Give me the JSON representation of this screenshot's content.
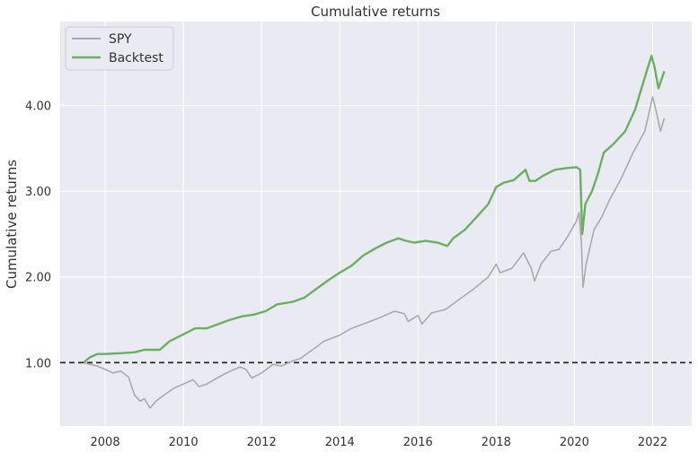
{
  "chart_data": {
    "type": "line",
    "title": "Cumulative returns",
    "xlabel": "",
    "ylabel": "Cumulative returns",
    "xlim": [
      2006.85,
      2023.0
    ],
    "ylim": [
      0.26,
      4.98
    ],
    "xticks": [
      2008,
      2010,
      2012,
      2014,
      2016,
      2018,
      2020,
      2022
    ],
    "xtick_labels": [
      "2008",
      "2010",
      "2012",
      "2014",
      "2016",
      "2018",
      "2020",
      "2022"
    ],
    "yticks": [
      1.0,
      2.0,
      3.0,
      4.0
    ],
    "ytick_labels": [
      "1.00",
      "2.00",
      "3.00",
      "4.00"
    ],
    "grid": true,
    "legend": "top-left",
    "reference_line": {
      "y": 1.0,
      "style": "dashed",
      "color": "#222222"
    },
    "series": [
      {
        "name": "SPY",
        "color": "#aaaaaa",
        "points": [
          [
            2007.45,
            1.0
          ],
          [
            2007.6,
            0.98
          ],
          [
            2007.8,
            0.96
          ],
          [
            2008.0,
            0.92
          ],
          [
            2008.2,
            0.88
          ],
          [
            2008.4,
            0.9
          ],
          [
            2008.6,
            0.83
          ],
          [
            2008.75,
            0.62
          ],
          [
            2008.9,
            0.55
          ],
          [
            2009.0,
            0.58
          ],
          [
            2009.15,
            0.47
          ],
          [
            2009.3,
            0.55
          ],
          [
            2009.5,
            0.62
          ],
          [
            2009.75,
            0.7
          ],
          [
            2010.0,
            0.75
          ],
          [
            2010.25,
            0.8
          ],
          [
            2010.4,
            0.72
          ],
          [
            2010.6,
            0.75
          ],
          [
            2010.9,
            0.83
          ],
          [
            2011.2,
            0.9
          ],
          [
            2011.45,
            0.95
          ],
          [
            2011.6,
            0.92
          ],
          [
            2011.75,
            0.82
          ],
          [
            2012.0,
            0.88
          ],
          [
            2012.3,
            0.98
          ],
          [
            2012.5,
            0.96
          ],
          [
            2012.8,
            1.02
          ],
          [
            2013.0,
            1.05
          ],
          [
            2013.3,
            1.15
          ],
          [
            2013.6,
            1.25
          ],
          [
            2014.0,
            1.32
          ],
          [
            2014.3,
            1.4
          ],
          [
            2014.6,
            1.45
          ],
          [
            2015.0,
            1.52
          ],
          [
            2015.4,
            1.6
          ],
          [
            2015.65,
            1.57
          ],
          [
            2015.75,
            1.48
          ],
          [
            2016.0,
            1.55
          ],
          [
            2016.1,
            1.45
          ],
          [
            2016.35,
            1.58
          ],
          [
            2016.7,
            1.62
          ],
          [
            2017.0,
            1.72
          ],
          [
            2017.4,
            1.85
          ],
          [
            2017.8,
            2.0
          ],
          [
            2018.0,
            2.15
          ],
          [
            2018.1,
            2.05
          ],
          [
            2018.4,
            2.1
          ],
          [
            2018.7,
            2.28
          ],
          [
            2018.9,
            2.1
          ],
          [
            2018.98,
            1.95
          ],
          [
            2019.15,
            2.15
          ],
          [
            2019.4,
            2.3
          ],
          [
            2019.6,
            2.32
          ],
          [
            2019.8,
            2.45
          ],
          [
            2020.05,
            2.65
          ],
          [
            2020.12,
            2.75
          ],
          [
            2020.18,
            2.4
          ],
          [
            2020.22,
            1.88
          ],
          [
            2020.3,
            2.15
          ],
          [
            2020.5,
            2.55
          ],
          [
            2020.7,
            2.7
          ],
          [
            2020.9,
            2.9
          ],
          [
            2021.2,
            3.15
          ],
          [
            2021.5,
            3.45
          ],
          [
            2021.8,
            3.7
          ],
          [
            2022.0,
            4.1
          ],
          [
            2022.1,
            3.92
          ],
          [
            2022.2,
            3.7
          ],
          [
            2022.3,
            3.85
          ]
        ]
      },
      {
        "name": "Backtest",
        "color": "#6aaf62",
        "points": [
          [
            2007.45,
            1.0
          ],
          [
            2007.6,
            1.06
          ],
          [
            2007.8,
            1.1
          ],
          [
            2008.0,
            1.1
          ],
          [
            2008.4,
            1.11
          ],
          [
            2008.75,
            1.12
          ],
          [
            2009.0,
            1.15
          ],
          [
            2009.4,
            1.15
          ],
          [
            2009.65,
            1.25
          ],
          [
            2010.0,
            1.33
          ],
          [
            2010.3,
            1.4
          ],
          [
            2010.6,
            1.4
          ],
          [
            2010.9,
            1.45
          ],
          [
            2011.2,
            1.5
          ],
          [
            2011.5,
            1.54
          ],
          [
            2011.8,
            1.56
          ],
          [
            2012.1,
            1.6
          ],
          [
            2012.4,
            1.68
          ],
          [
            2012.8,
            1.71
          ],
          [
            2013.1,
            1.76
          ],
          [
            2013.4,
            1.86
          ],
          [
            2013.7,
            1.96
          ],
          [
            2014.0,
            2.05
          ],
          [
            2014.3,
            2.13
          ],
          [
            2014.6,
            2.25
          ],
          [
            2014.9,
            2.33
          ],
          [
            2015.2,
            2.4
          ],
          [
            2015.5,
            2.45
          ],
          [
            2015.7,
            2.42
          ],
          [
            2015.9,
            2.4
          ],
          [
            2016.2,
            2.42
          ],
          [
            2016.5,
            2.4
          ],
          [
            2016.75,
            2.36
          ],
          [
            2016.9,
            2.45
          ],
          [
            2017.2,
            2.55
          ],
          [
            2017.5,
            2.7
          ],
          [
            2017.8,
            2.85
          ],
          [
            2018.0,
            3.05
          ],
          [
            2018.2,
            3.1
          ],
          [
            2018.45,
            3.13
          ],
          [
            2018.75,
            3.25
          ],
          [
            2018.85,
            3.12
          ],
          [
            2019.0,
            3.12
          ],
          [
            2019.2,
            3.18
          ],
          [
            2019.5,
            3.25
          ],
          [
            2019.8,
            3.27
          ],
          [
            2020.05,
            3.28
          ],
          [
            2020.15,
            3.25
          ],
          [
            2020.2,
            2.5
          ],
          [
            2020.28,
            2.85
          ],
          [
            2020.45,
            3.0
          ],
          [
            2020.6,
            3.2
          ],
          [
            2020.75,
            3.45
          ],
          [
            2021.0,
            3.55
          ],
          [
            2021.3,
            3.7
          ],
          [
            2021.55,
            3.95
          ],
          [
            2021.85,
            4.4
          ],
          [
            2021.97,
            4.58
          ],
          [
            2022.05,
            4.45
          ],
          [
            2022.15,
            4.2
          ],
          [
            2022.3,
            4.4
          ]
        ]
      }
    ]
  }
}
